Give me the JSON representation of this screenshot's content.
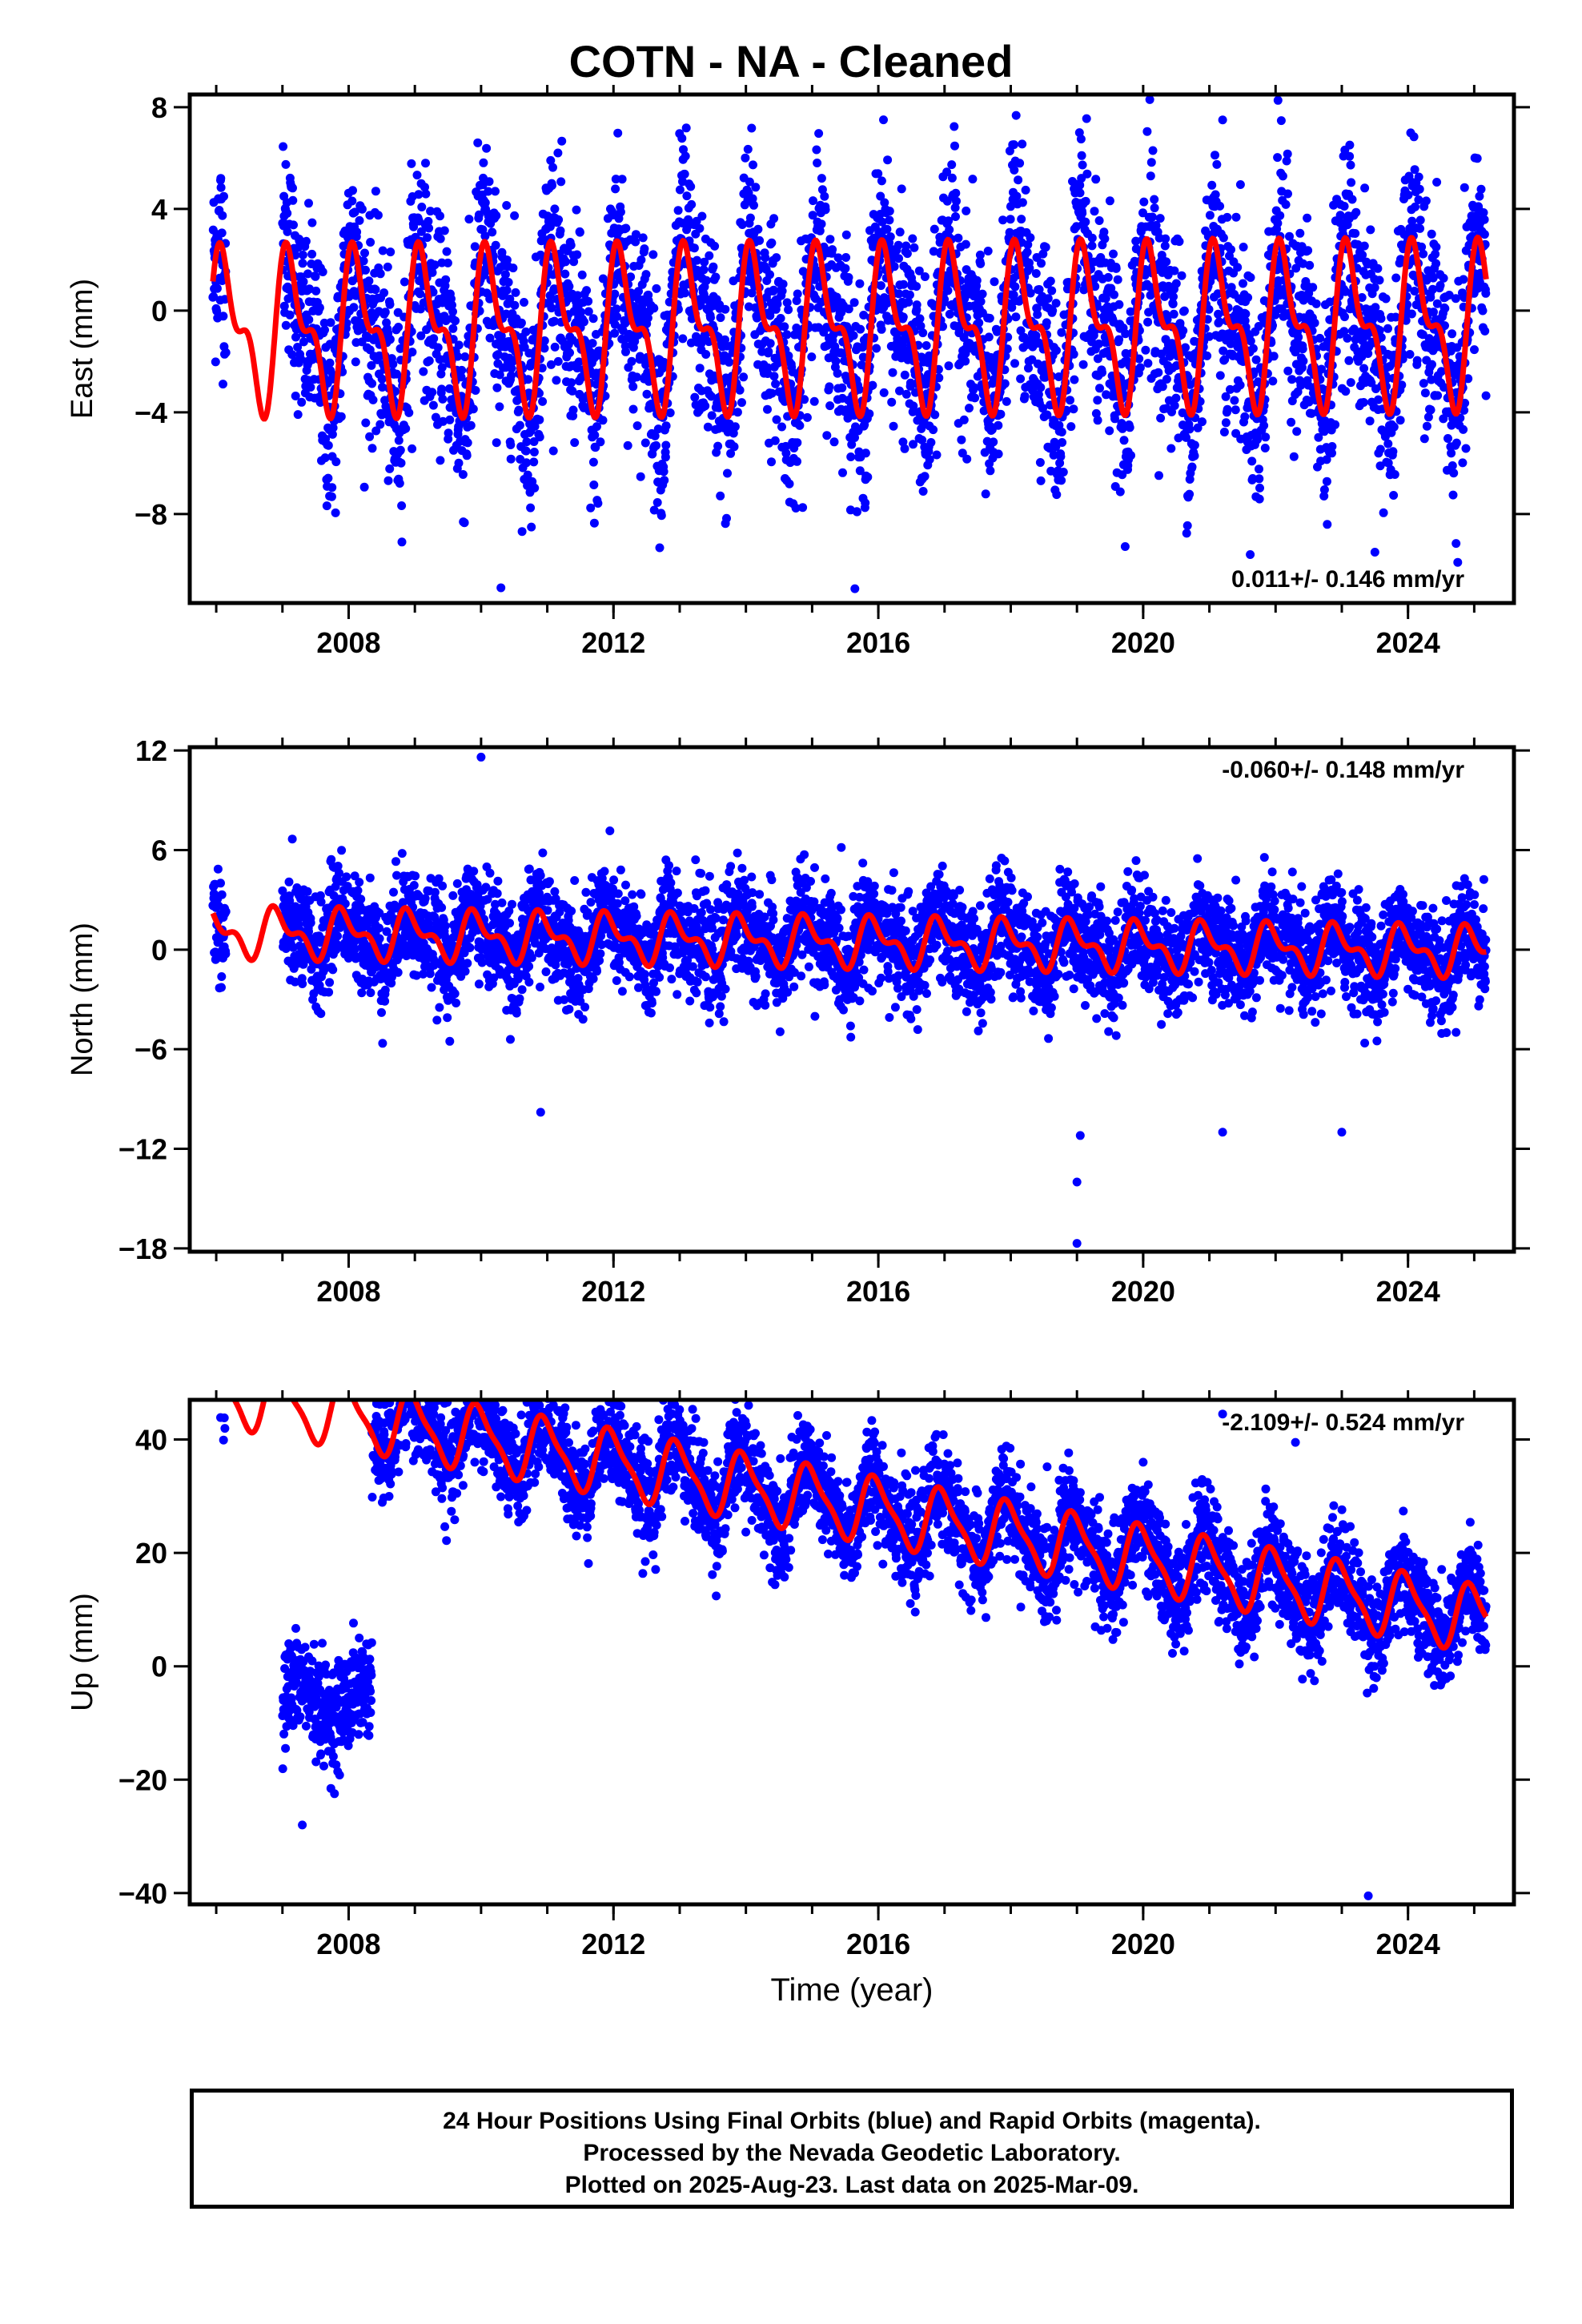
{
  "title": "COTN  - NA - Cleaned",
  "xlabel": "Time (year)",
  "footer": {
    "line1": "24 Hour Positions Using Final Orbits (blue) and Rapid Orbits (magenta).",
    "line2": "Processed by the Nevada Geodetic Laboratory.",
    "line3": "Plotted on 2025-Aug-23. Last data on 2025-Mar-09."
  },
  "colors": {
    "data": "#0000ff",
    "model": "#ff0000",
    "axis": "#000000"
  },
  "chart_data": [
    {
      "type": "scatter",
      "name": "east",
      "ylabel": "East (mm)",
      "rate_label": "0.011+/- 0.146 mm/yr",
      "rate_position": "bottom-right",
      "xlim": [
        2005.6,
        2025.6
      ],
      "ylim": [
        -11.5,
        8.5
      ],
      "xticks": [
        2008,
        2012,
        2016,
        2020,
        2024
      ],
      "yticks": [
        -8,
        -4,
        0,
        4,
        8
      ],
      "ytick_labels": [
        "−8",
        "−4",
        "0",
        "4",
        "8"
      ],
      "model": {
        "slope": 0.011,
        "offset": -0.7,
        "annual_amp": 2.6,
        "semiannual_amp": 1.4,
        "phase_deg": 40
      },
      "data_start": 2005.95,
      "data_end": 2025.18,
      "gap": [
        2006.15,
        2007.0
      ],
      "scatter_sd": 2.0,
      "outliers": [
        {
          "x": 2010.3,
          "y": -10.9
        },
        {
          "x": 2020.1,
          "y": 8.3
        },
        {
          "x": 2023.5,
          "y": -9.5
        },
        {
          "x": 2009.95,
          "y": 6.6
        },
        {
          "x": 2021.2,
          "y": 7.5
        }
      ]
    },
    {
      "type": "scatter",
      "name": "north",
      "ylabel": "North (mm)",
      "rate_label": "-0.060+/- 0.148 mm/yr",
      "rate_position": "top-right",
      "xlim": [
        2005.6,
        2025.6
      ],
      "ylim": [
        -18.2,
        12.2
      ],
      "xticks": [
        2008,
        2012,
        2016,
        2020,
        2024
      ],
      "yticks": [
        -18,
        -12,
        -6,
        0,
        6,
        12
      ],
      "ytick_labels": [
        "−18",
        "−12",
        "−6",
        "0",
        "6",
        "12"
      ],
      "model": {
        "slope": -0.06,
        "offset": 0.5,
        "annual_amp": 1.2,
        "semiannual_amp": 0.7,
        "phase_deg": 110
      },
      "data_start": 2005.95,
      "data_end": 2025.18,
      "gap": [
        2006.15,
        2007.0
      ],
      "scatter_sd": 1.6,
      "outliers": [
        {
          "x": 2010.0,
          "y": 11.6
        },
        {
          "x": 2010.9,
          "y": -9.8
        },
        {
          "x": 2019.0,
          "y": -17.7
        },
        {
          "x": 2019.0,
          "y": -14.0
        },
        {
          "x": 2019.05,
          "y": -11.2
        },
        {
          "x": 2021.2,
          "y": -11.0
        },
        {
          "x": 2023.0,
          "y": -11.0
        }
      ]
    },
    {
      "type": "scatter",
      "name": "up",
      "ylabel": "Up (mm)",
      "rate_label": "-2.109+/- 0.524 mm/yr",
      "rate_position": "top-right",
      "xlim": [
        2005.6,
        2025.6
      ],
      "ylim": [
        -42,
        47
      ],
      "xticks": [
        2008,
        2012,
        2016,
        2020,
        2024
      ],
      "yticks": [
        -40,
        -20,
        0,
        20,
        40
      ],
      "ytick_labels": [
        "−40",
        "−20",
        "0",
        "20",
        "40"
      ],
      "model": {
        "slope": -2.109,
        "offset": 29.5,
        "annual_amp": 5.5,
        "semiannual_amp": 1.5,
        "phase_deg": 100
      },
      "data_start": 2005.95,
      "data_end": 2025.18,
      "gap": [
        2006.15,
        2007.0
      ],
      "scatter_sd": 4.5,
      "early_segment": {
        "start": 2007.0,
        "end": 2008.35,
        "level": -6
      },
      "outliers": [
        {
          "x": 2011.0,
          "y": 43.5
        },
        {
          "x": 2021.2,
          "y": 44.5
        },
        {
          "x": 2022.3,
          "y": 39.5
        },
        {
          "x": 2007.3,
          "y": -28
        },
        {
          "x": 2023.4,
          "y": -40.5
        },
        {
          "x": 2016.0,
          "y": 36
        },
        {
          "x": 2020.0,
          "y": 36
        }
      ]
    }
  ]
}
